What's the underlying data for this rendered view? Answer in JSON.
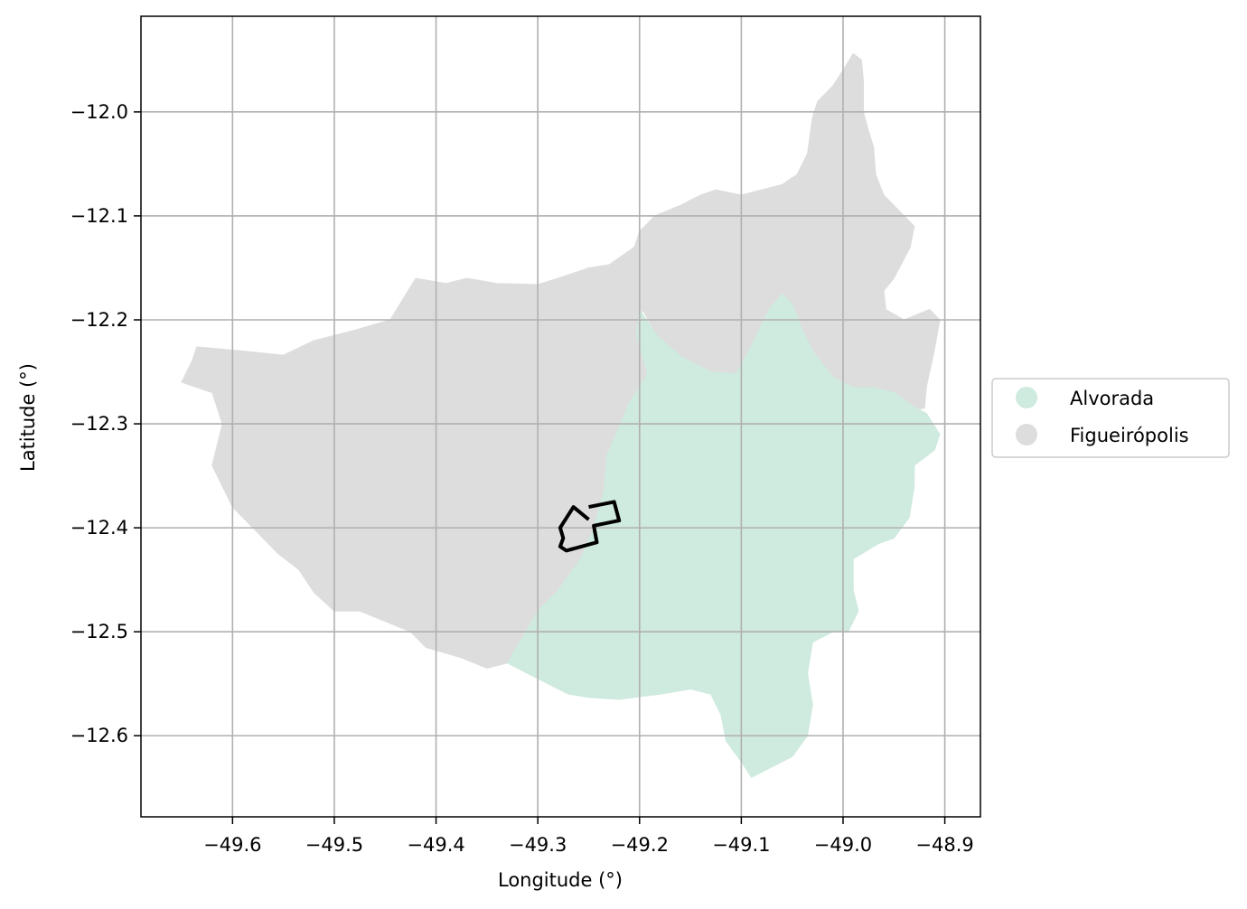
{
  "map": {
    "xlabel": "Longitude (°)",
    "ylabel": "Latitude (°)",
    "xlim": [
      -49.69,
      -48.865
    ],
    "ylim": [
      -12.678,
      -11.908
    ],
    "x_ticks": [
      -49.6,
      -49.5,
      -49.4,
      -49.3,
      -49.2,
      -49.1,
      -49.0,
      -48.9
    ],
    "x_tick_labels": [
      "−49.6",
      "−49.5",
      "−49.4",
      "−49.3",
      "−49.2",
      "−49.1",
      "−49.0",
      "−48.9"
    ],
    "y_ticks": [
      -12.0,
      -12.1,
      -12.2,
      -12.3,
      -12.4,
      -12.5,
      -12.6
    ],
    "y_tick_labels": [
      "−12.0",
      "−12.1",
      "−12.2",
      "−12.3",
      "−12.4",
      "−12.5",
      "−12.6"
    ],
    "grid": true,
    "legend_position": "right-center",
    "legend": [
      {
        "label": "Alvorada",
        "color": "#cfeade"
      },
      {
        "label": "Figueirópolis",
        "color": "#dddddd"
      }
    ],
    "regions": [
      {
        "name": "Figueirópolis",
        "color": "#dddddd",
        "coords": [
          [
            -48.99,
            -11.944
          ],
          [
            -48.982,
            -11.95
          ],
          [
            -48.98,
            -11.97
          ],
          [
            -48.98,
            -12.0
          ],
          [
            -48.975,
            -12.018
          ],
          [
            -48.97,
            -12.034
          ],
          [
            -48.968,
            -12.06
          ],
          [
            -48.96,
            -12.08
          ],
          [
            -48.94,
            -12.1
          ],
          [
            -48.93,
            -12.11
          ],
          [
            -48.934,
            -12.13
          ],
          [
            -48.95,
            -12.16
          ],
          [
            -48.96,
            -12.172
          ],
          [
            -48.958,
            -12.19
          ],
          [
            -48.94,
            -12.2
          ],
          [
            -48.915,
            -12.19
          ],
          [
            -48.905,
            -12.2
          ],
          [
            -48.91,
            -12.228
          ],
          [
            -48.918,
            -12.264
          ],
          [
            -48.92,
            -12.285
          ],
          [
            -48.93,
            -12.286
          ],
          [
            -48.978,
            -12.27
          ],
          [
            -49.01,
            -12.262
          ],
          [
            -49.04,
            -12.24
          ],
          [
            -49.06,
            -12.204
          ],
          [
            -49.072,
            -12.189
          ],
          [
            -49.08,
            -12.205
          ],
          [
            -49.09,
            -12.225
          ],
          [
            -49.105,
            -12.252
          ],
          [
            -49.13,
            -12.25
          ],
          [
            -49.16,
            -12.235
          ],
          [
            -49.183,
            -12.215
          ],
          [
            -49.197,
            -12.19
          ],
          [
            -49.203,
            -12.215
          ],
          [
            -49.192,
            -12.252
          ],
          [
            -49.21,
            -12.28
          ],
          [
            -49.232,
            -12.33
          ],
          [
            -49.235,
            -12.365
          ],
          [
            -49.245,
            -12.4
          ],
          [
            -49.258,
            -12.43
          ],
          [
            -49.28,
            -12.46
          ],
          [
            -49.3,
            -12.48
          ],
          [
            -49.33,
            -12.53
          ],
          [
            -49.35,
            -12.535
          ],
          [
            -49.375,
            -12.525
          ],
          [
            -49.41,
            -12.515
          ],
          [
            -49.425,
            -12.5
          ],
          [
            -49.45,
            -12.49
          ],
          [
            -49.475,
            -12.48
          ],
          [
            -49.5,
            -12.48
          ],
          [
            -49.52,
            -12.462
          ],
          [
            -49.535,
            -12.44
          ],
          [
            -49.555,
            -12.425
          ],
          [
            -49.575,
            -12.405
          ],
          [
            -49.6,
            -12.38
          ],
          [
            -49.62,
            -12.34
          ],
          [
            -49.61,
            -12.3
          ],
          [
            -49.62,
            -12.27
          ],
          [
            -49.65,
            -12.26
          ],
          [
            -49.64,
            -12.24
          ],
          [
            -49.635,
            -12.226
          ],
          [
            -49.59,
            -12.23
          ],
          [
            -49.55,
            -12.234
          ],
          [
            -49.52,
            -12.22
          ],
          [
            -49.48,
            -12.21
          ],
          [
            -49.445,
            -12.2
          ],
          [
            -49.42,
            -12.16
          ],
          [
            -49.39,
            -12.165
          ],
          [
            -49.37,
            -12.16
          ],
          [
            -49.34,
            -12.165
          ],
          [
            -49.3,
            -12.166
          ],
          [
            -49.28,
            -12.16
          ],
          [
            -49.25,
            -12.15
          ],
          [
            -49.23,
            -12.147
          ],
          [
            -49.205,
            -12.13
          ],
          [
            -49.2,
            -12.115
          ],
          [
            -49.185,
            -12.1
          ],
          [
            -49.16,
            -12.09
          ],
          [
            -49.14,
            -12.08
          ],
          [
            -49.125,
            -12.075
          ],
          [
            -49.1,
            -12.08
          ],
          [
            -49.06,
            -12.07
          ],
          [
            -49.045,
            -12.06
          ],
          [
            -49.035,
            -12.04
          ],
          [
            -49.03,
            -12.005
          ],
          [
            -49.025,
            -11.99
          ],
          [
            -49.01,
            -11.975
          ],
          [
            -49.0,
            -11.96
          ]
        ]
      },
      {
        "name": "Alvorada",
        "color": "#cfeade",
        "coords": [
          [
            -49.2,
            -12.19
          ],
          [
            -49.183,
            -12.215
          ],
          [
            -49.16,
            -12.235
          ],
          [
            -49.13,
            -12.25
          ],
          [
            -49.105,
            -12.252
          ],
          [
            -49.09,
            -12.225
          ],
          [
            -49.08,
            -12.205
          ],
          [
            -49.072,
            -12.189
          ],
          [
            -49.06,
            -12.175
          ],
          [
            -49.05,
            -12.185
          ],
          [
            -49.04,
            -12.21
          ],
          [
            -49.03,
            -12.23
          ],
          [
            -49.01,
            -12.255
          ],
          [
            -48.99,
            -12.265
          ],
          [
            -48.97,
            -12.265
          ],
          [
            -48.95,
            -12.27
          ],
          [
            -48.93,
            -12.284
          ],
          [
            -48.918,
            -12.29
          ],
          [
            -48.905,
            -12.31
          ],
          [
            -48.91,
            -12.325
          ],
          [
            -48.93,
            -12.34
          ],
          [
            -48.93,
            -12.36
          ],
          [
            -48.935,
            -12.39
          ],
          [
            -48.95,
            -12.41
          ],
          [
            -48.965,
            -12.415
          ],
          [
            -48.99,
            -12.43
          ],
          [
            -48.99,
            -12.46
          ],
          [
            -48.985,
            -12.48
          ],
          [
            -48.995,
            -12.5
          ],
          [
            -49.01,
            -12.5
          ],
          [
            -49.03,
            -12.51
          ],
          [
            -49.035,
            -12.54
          ],
          [
            -49.03,
            -12.57
          ],
          [
            -49.035,
            -12.6
          ],
          [
            -49.05,
            -12.62
          ],
          [
            -49.07,
            -12.63
          ],
          [
            -49.09,
            -12.64
          ],
          [
            -49.1,
            -12.625
          ],
          [
            -49.115,
            -12.605
          ],
          [
            -49.12,
            -12.58
          ],
          [
            -49.13,
            -12.56
          ],
          [
            -49.15,
            -12.555
          ],
          [
            -49.18,
            -12.56
          ],
          [
            -49.22,
            -12.565
          ],
          [
            -49.25,
            -12.563
          ],
          [
            -49.27,
            -12.56
          ],
          [
            -49.3,
            -12.545
          ],
          [
            -49.33,
            -12.53
          ],
          [
            -49.3,
            -12.48
          ],
          [
            -49.28,
            -12.46
          ],
          [
            -49.258,
            -12.43
          ],
          [
            -49.245,
            -12.4
          ],
          [
            -49.235,
            -12.365
          ],
          [
            -49.232,
            -12.33
          ],
          [
            -49.21,
            -12.28
          ],
          [
            -49.192,
            -12.252
          ],
          [
            -49.203,
            -12.215
          ]
        ]
      }
    ],
    "outline": {
      "color": "#000000",
      "coords": [
        [
          -49.25,
          -12.38
        ],
        [
          -49.225,
          -12.375
        ],
        [
          -49.22,
          -12.393
        ],
        [
          -49.245,
          -12.398
        ],
        [
          -49.242,
          -12.414
        ],
        [
          -49.272,
          -12.422
        ],
        [
          -49.278,
          -12.418
        ],
        [
          -49.275,
          -12.41
        ],
        [
          -49.278,
          -12.4
        ],
        [
          -49.265,
          -12.38
        ],
        [
          -49.25,
          -12.392
        ]
      ]
    }
  }
}
